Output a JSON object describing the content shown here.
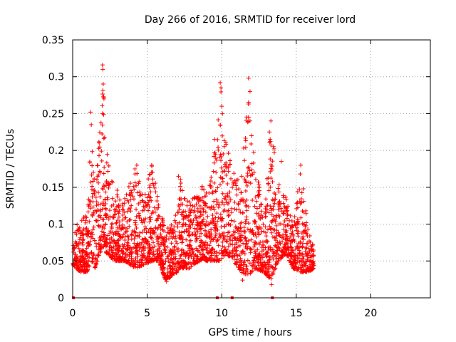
{
  "chart_data": {
    "type": "scatter",
    "title": "Day 266 of 2016, SRMTID for receiver lord",
    "xlabel": "GPS time / hours",
    "ylabel": "SRMTID / TECUs",
    "xlim": [
      0,
      24
    ],
    "ylim": [
      0,
      0.35
    ],
    "xticks": [
      0,
      5,
      10,
      15,
      20
    ],
    "xtick_labels": [
      "0",
      "5",
      "10",
      "15",
      "20"
    ],
    "yticks": [
      0,
      0.05,
      0.1,
      0.15,
      0.2,
      0.25,
      0.3,
      0.35
    ],
    "ytick_labels": [
      "0",
      "0.05",
      "0.1",
      "0.15",
      "0.2",
      "0.25",
      "0.3",
      "0.35"
    ],
    "grid": true,
    "marker": "plus",
    "color": "#ff0000",
    "zero_markers_x": [
      0.05,
      9.7,
      10.7,
      13.4
    ],
    "envelope": [
      {
        "x": 0.0,
        "lo": 0.045,
        "hi": 0.085
      },
      {
        "x": 0.5,
        "lo": 0.035,
        "hi": 0.11
      },
      {
        "x": 1.0,
        "lo": 0.035,
        "hi": 0.12
      },
      {
        "x": 1.25,
        "lo": 0.05,
        "hi": 0.25
      },
      {
        "x": 1.5,
        "lo": 0.04,
        "hi": 0.14
      },
      {
        "x": 2.0,
        "lo": 0.07,
        "hi": 0.31
      },
      {
        "x": 2.3,
        "lo": 0.06,
        "hi": 0.2
      },
      {
        "x": 2.8,
        "lo": 0.05,
        "hi": 0.15
      },
      {
        "x": 3.5,
        "lo": 0.05,
        "hi": 0.135
      },
      {
        "x": 4.2,
        "lo": 0.04,
        "hi": 0.18
      },
      {
        "x": 4.8,
        "lo": 0.045,
        "hi": 0.14
      },
      {
        "x": 5.3,
        "lo": 0.05,
        "hi": 0.18
      },
      {
        "x": 5.8,
        "lo": 0.05,
        "hi": 0.135
      },
      {
        "x": 6.2,
        "lo": 0.025,
        "hi": 0.09
      },
      {
        "x": 6.8,
        "lo": 0.03,
        "hi": 0.11
      },
      {
        "x": 7.2,
        "lo": 0.04,
        "hi": 0.165
      },
      {
        "x": 7.8,
        "lo": 0.04,
        "hi": 0.13
      },
      {
        "x": 8.5,
        "lo": 0.05,
        "hi": 0.15
      },
      {
        "x": 9.2,
        "lo": 0.05,
        "hi": 0.155
      },
      {
        "x": 9.9,
        "lo": 0.05,
        "hi": 0.29
      },
      {
        "x": 10.3,
        "lo": 0.06,
        "hi": 0.21
      },
      {
        "x": 10.8,
        "lo": 0.05,
        "hi": 0.17
      },
      {
        "x": 11.3,
        "lo": 0.035,
        "hi": 0.16
      },
      {
        "x": 11.8,
        "lo": 0.03,
        "hi": 0.3
      },
      {
        "x": 12.2,
        "lo": 0.04,
        "hi": 0.19
      },
      {
        "x": 12.8,
        "lo": 0.035,
        "hi": 0.12
      },
      {
        "x": 13.3,
        "lo": 0.025,
        "hi": 0.24
      },
      {
        "x": 13.8,
        "lo": 0.05,
        "hi": 0.16
      },
      {
        "x": 14.3,
        "lo": 0.06,
        "hi": 0.14
      },
      {
        "x": 14.8,
        "lo": 0.04,
        "hi": 0.1
      },
      {
        "x": 15.3,
        "lo": 0.035,
        "hi": 0.18
      },
      {
        "x": 15.8,
        "lo": 0.035,
        "hi": 0.09
      },
      {
        "x": 16.2,
        "lo": 0.04,
        "hi": 0.07
      }
    ],
    "peaks": [
      {
        "x": 1.2,
        "y": 0.252
      },
      {
        "x": 1.25,
        "y": 0.235
      },
      {
        "x": 2.0,
        "y": 0.316
      },
      {
        "x": 2.02,
        "y": 0.31
      },
      {
        "x": 2.05,
        "y": 0.29
      },
      {
        "x": 2.1,
        "y": 0.27
      },
      {
        "x": 2.0,
        "y": 0.25
      },
      {
        "x": 4.3,
        "y": 0.18
      },
      {
        "x": 5.3,
        "y": 0.18
      },
      {
        "x": 7.1,
        "y": 0.165
      },
      {
        "x": 9.9,
        "y": 0.292
      },
      {
        "x": 9.95,
        "y": 0.285
      },
      {
        "x": 10.0,
        "y": 0.26
      },
      {
        "x": 11.8,
        "y": 0.298
      },
      {
        "x": 11.9,
        "y": 0.28
      },
      {
        "x": 11.8,
        "y": 0.245
      },
      {
        "x": 11.9,
        "y": 0.24
      },
      {
        "x": 12.0,
        "y": 0.22
      },
      {
        "x": 13.3,
        "y": 0.24
      },
      {
        "x": 13.2,
        "y": 0.225
      },
      {
        "x": 13.25,
        "y": 0.215
      },
      {
        "x": 14.0,
        "y": 0.185
      },
      {
        "x": 15.3,
        "y": 0.18
      },
      {
        "x": 13.35,
        "y": 0.018
      },
      {
        "x": 11.4,
        "y": 0.024
      },
      {
        "x": 6.3,
        "y": 0.022
      }
    ],
    "point_count": 2600,
    "seed": 266
  }
}
